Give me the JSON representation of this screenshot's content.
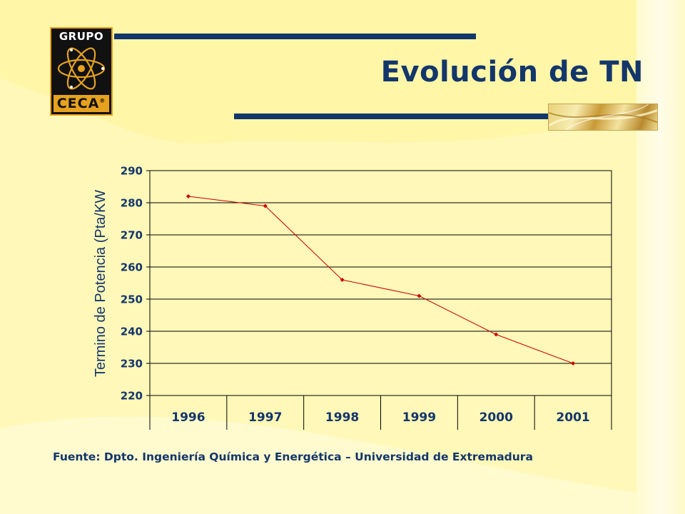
{
  "slide": {
    "title": "Evolución de TN",
    "source": "Fuente: Dpto. Ingeniería Química y Energética – Universidad de Extremadura"
  },
  "logo": {
    "top_text": "GRUPO",
    "bottom_text": "CECA",
    "mark": "®",
    "icon": "atom-icon"
  },
  "colors": {
    "background": "#fff8b8",
    "title": "#13366b",
    "line": "#cc0000",
    "logo_accent": "#e6a21f"
  },
  "chart_data": {
    "type": "line",
    "title": "",
    "xlabel": "",
    "ylabel": "Termino de Potencia (Pta/KW",
    "categories": [
      "1996",
      "1997",
      "1998",
      "1999",
      "2000",
      "2001"
    ],
    "series": [
      {
        "values": [
          282,
          279,
          256,
          251,
          239,
          230
        ]
      }
    ],
    "ylim": [
      220,
      290
    ],
    "yticks": [
      "220",
      "230",
      "240",
      "250",
      "260",
      "270",
      "280",
      "290"
    ],
    "grid": true,
    "legend": "none"
  }
}
